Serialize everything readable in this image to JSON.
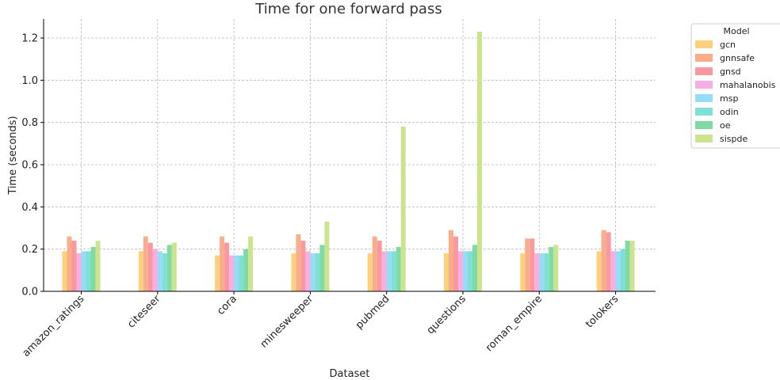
{
  "chart_data": {
    "type": "bar",
    "title": "Time for one forward pass",
    "xlabel": "Dataset",
    "ylabel": "Time (seconds)",
    "ylim": [
      0,
      1.29
    ],
    "yticks": [
      0.0,
      0.2,
      0.4,
      0.6,
      0.8,
      1.0,
      1.2
    ],
    "ytick_labels": [
      "0.0",
      "0.2",
      "0.4",
      "0.6",
      "0.8",
      "1.0",
      "1.2"
    ],
    "grid": true,
    "legend": {
      "title": "Model",
      "placement": "outside-top-right"
    },
    "categories": [
      "amazon_ratings",
      "citeseer",
      "cora",
      "minesweeper",
      "pubmed",
      "questions",
      "roman_empire",
      "tolokers"
    ],
    "series": [
      {
        "name": "gcn",
        "color": "#fdd07d",
        "values": [
          0.19,
          0.19,
          0.17,
          0.18,
          0.18,
          0.18,
          0.18,
          0.19
        ]
      },
      {
        "name": "gnnsafe",
        "color": "#f9ae8b",
        "values": [
          0.26,
          0.26,
          0.26,
          0.27,
          0.26,
          0.29,
          0.25,
          0.29
        ]
      },
      {
        "name": "gnsd",
        "color": "#fa98a1",
        "values": [
          0.24,
          0.23,
          0.23,
          0.24,
          0.24,
          0.26,
          0.25,
          0.28
        ]
      },
      {
        "name": "mahalanobis",
        "color": "#f8aee0",
        "values": [
          0.18,
          0.2,
          0.17,
          0.19,
          0.19,
          0.19,
          0.18,
          0.19
        ]
      },
      {
        "name": "msp",
        "color": "#97dcf6",
        "values": [
          0.19,
          0.19,
          0.17,
          0.18,
          0.19,
          0.19,
          0.18,
          0.19
        ]
      },
      {
        "name": "odin",
        "color": "#7ee0d6",
        "values": [
          0.19,
          0.18,
          0.17,
          0.18,
          0.19,
          0.19,
          0.18,
          0.2
        ]
      },
      {
        "name": "oe",
        "color": "#7fdba3",
        "values": [
          0.21,
          0.22,
          0.2,
          0.22,
          0.21,
          0.22,
          0.21,
          0.24
        ]
      },
      {
        "name": "sispde",
        "color": "#cce48f",
        "values": [
          0.24,
          0.23,
          0.26,
          0.33,
          0.78,
          1.23,
          0.22,
          0.24
        ]
      }
    ]
  }
}
